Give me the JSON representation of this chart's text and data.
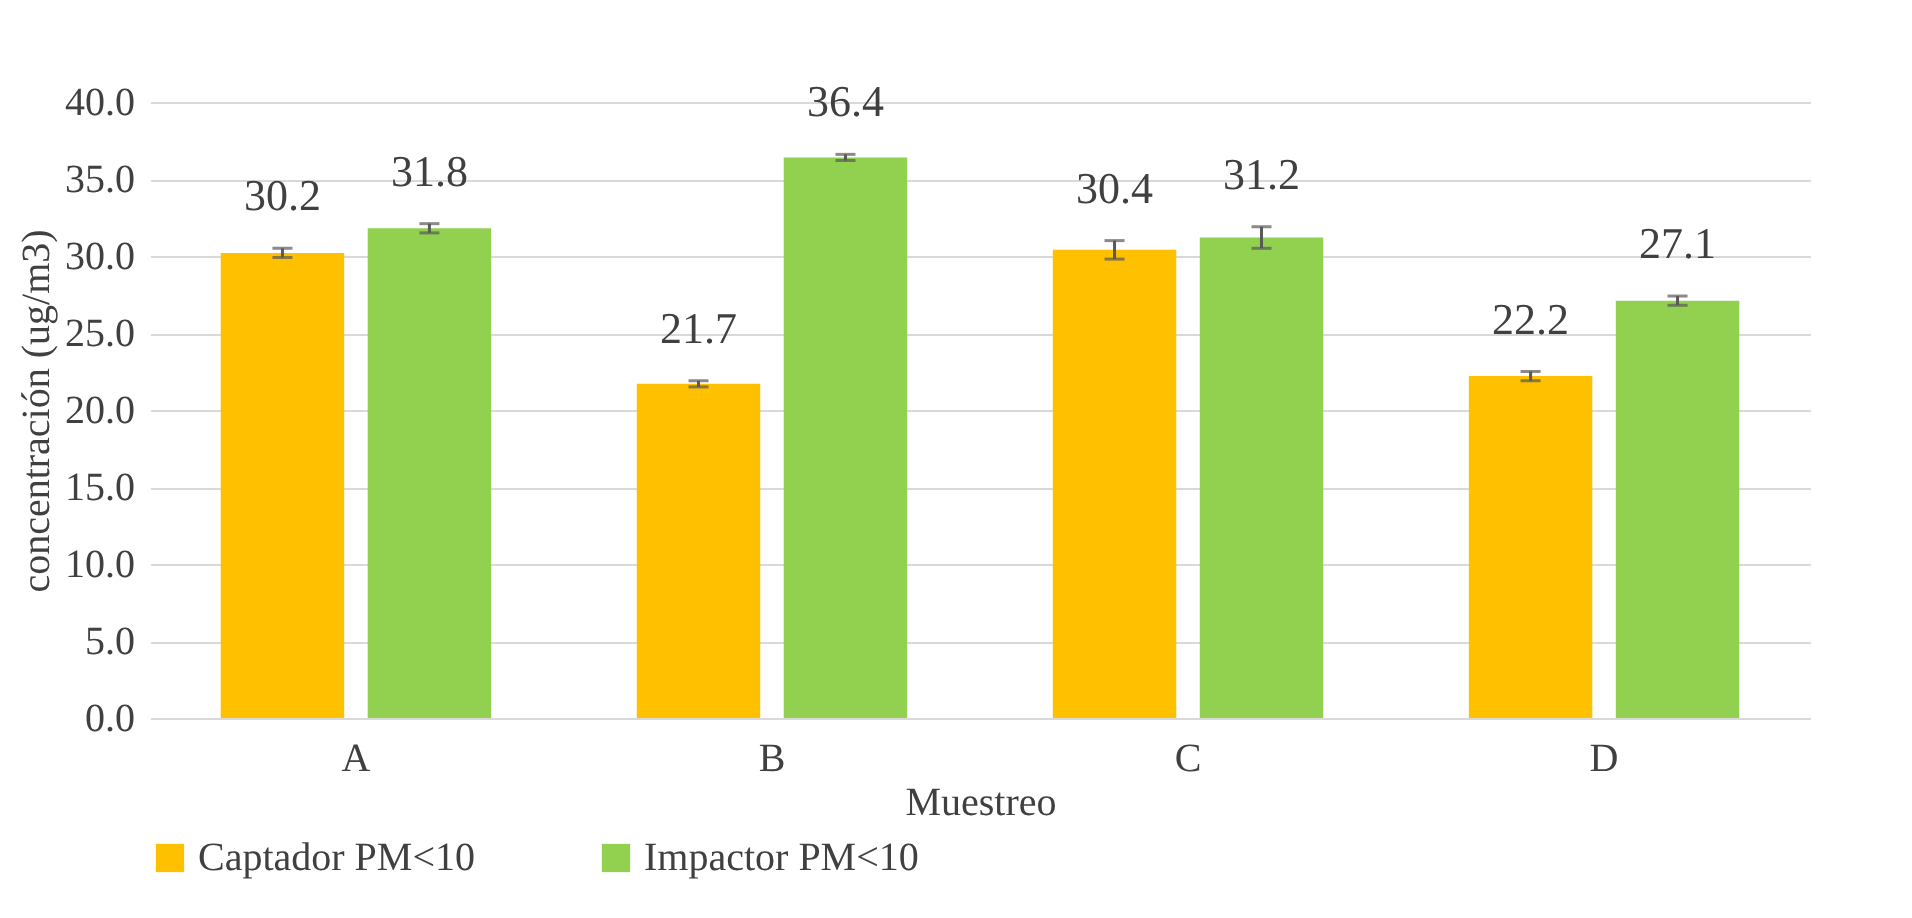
{
  "chart_data": {
    "type": "bar",
    "xlabel": "Muestreo",
    "ylabel": "concentración (ug/m3)",
    "categories": [
      "A",
      "B",
      "C",
      "D"
    ],
    "series": [
      {
        "name": "Captador PM<10",
        "color": "#ffc000",
        "values": [
          30.2,
          21.7,
          30.4,
          22.2
        ],
        "errors": [
          0.3,
          0.2,
          0.6,
          0.3
        ]
      },
      {
        "name": "Impactor PM<10",
        "color": "#92d050",
        "values": [
          31.8,
          36.4,
          31.2,
          27.1
        ],
        "errors": [
          0.3,
          0.2,
          0.7,
          0.3
        ]
      }
    ],
    "ylim": [
      0,
      40
    ],
    "yticks": [
      {
        "value": 0,
        "label": "0.0"
      },
      {
        "value": 5,
        "label": "5.0"
      },
      {
        "value": 10,
        "label": "10.0"
      },
      {
        "value": 15,
        "label": "15.0"
      },
      {
        "value": 20,
        "label": "20.0"
      },
      {
        "value": 25,
        "label": "25.0"
      },
      {
        "value": 30,
        "label": "30.0"
      },
      {
        "value": 35,
        "label": "35.0"
      },
      {
        "value": 40,
        "label": "40.0"
      }
    ],
    "grid": "y",
    "legend": "bottom",
    "data_labels": true
  }
}
